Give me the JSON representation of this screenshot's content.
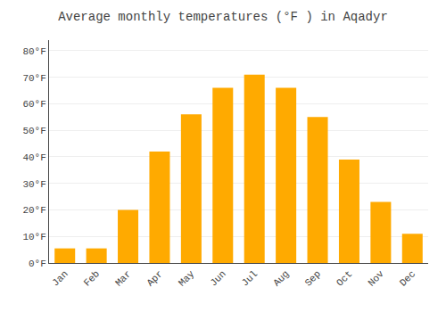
{
  "chart_data": {
    "type": "bar",
    "title": "Average monthly temperatures (°F ) in Aqadyr",
    "categories": [
      "Jan",
      "Feb",
      "Mar",
      "Apr",
      "May",
      "Jun",
      "Jul",
      "Aug",
      "Sep",
      "Oct",
      "Nov",
      "Dec"
    ],
    "values": [
      5.5,
      5.5,
      20,
      42,
      56,
      66,
      71,
      66,
      55,
      39,
      23,
      11
    ],
    "color": "#FFAA00",
    "ylim": [
      0,
      84
    ],
    "yticks": [
      {
        "value": 0,
        "label": "0°F"
      },
      {
        "value": 10,
        "label": "10°F"
      },
      {
        "value": 20,
        "label": "20°F"
      },
      {
        "value": 30,
        "label": "30°F"
      },
      {
        "value": 40,
        "label": "40°F"
      },
      {
        "value": 50,
        "label": "50°F"
      },
      {
        "value": 60,
        "label": "60°F"
      },
      {
        "value": 70,
        "label": "70°F"
      },
      {
        "value": 80,
        "label": "80°F"
      }
    ],
    "grid": true
  }
}
